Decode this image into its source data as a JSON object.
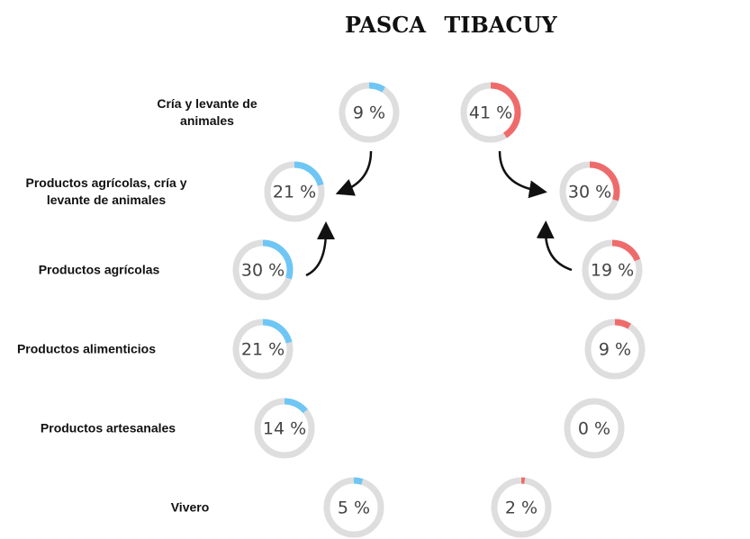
{
  "chart_data": {
    "type": "donut-gauge",
    "categories": [
      "Cría y levante de animales",
      "Productos agrícolas, cría y levante de animales",
      "Productos agrícolas",
      "Productos alimenticios",
      "Productos artesanales",
      "Vivero"
    ],
    "series": [
      {
        "name": "PASCA",
        "color": "#6ec6f5",
        "values": [
          9,
          21,
          30,
          21,
          14,
          5
        ],
        "value_labels": [
          "9 %",
          "21 %",
          "30 %",
          "21 %",
          "14 %",
          "5 %"
        ]
      },
      {
        "name": "TIBACUY",
        "color": "#ef6b6b",
        "values": [
          41,
          30,
          19,
          9,
          0,
          2
        ],
        "value_labels": [
          "41 %",
          "30 %",
          "19 %",
          "9 %",
          "0 %",
          "2 %"
        ]
      }
    ],
    "ylim": [
      0,
      100
    ]
  }
}
